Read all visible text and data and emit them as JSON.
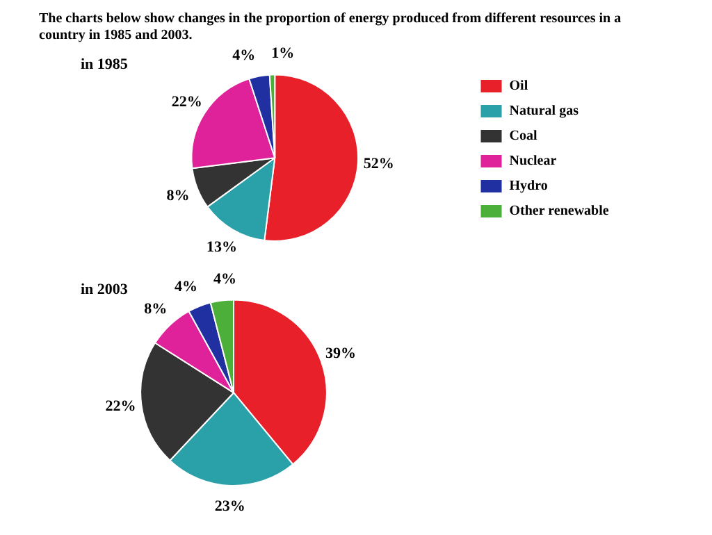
{
  "chart_data": [
    {
      "type": "pie",
      "title": "The charts below show changes in the proportion of energy produced from different resources in a country in 1985 and 2003.",
      "subtitle": "in 1985",
      "categories": [
        "Oil",
        "Natural gas",
        "Coal",
        "Nuclear",
        "Hydro",
        "Other renewable"
      ],
      "values": [
        52,
        13,
        8,
        22,
        4,
        1
      ],
      "value_labels": [
        "52%",
        "13%",
        "8%",
        "22%",
        "4%",
        "1%"
      ],
      "colors": [
        "#e8202a",
        "#2aa0a8",
        "#333333",
        "#e0229a",
        "#2030a0",
        "#4caf3a"
      ],
      "legend": "right"
    },
    {
      "type": "pie",
      "subtitle": "in 2003",
      "categories": [
        null,
        null,
        null,
        null,
        null,
        null
      ],
      "values": [
        39,
        23,
        22,
        8,
        4,
        4
      ],
      "value_labels": [
        "39%",
        "23%",
        "22%",
        "8%",
        "4%",
        "4%"
      ],
      "colors": [
        "#e8202a",
        "#2aa0a8",
        "#333333",
        "#e0229a",
        "#2030a0",
        "#4caf3a"
      ],
      "legend": false
    }
  ]
}
